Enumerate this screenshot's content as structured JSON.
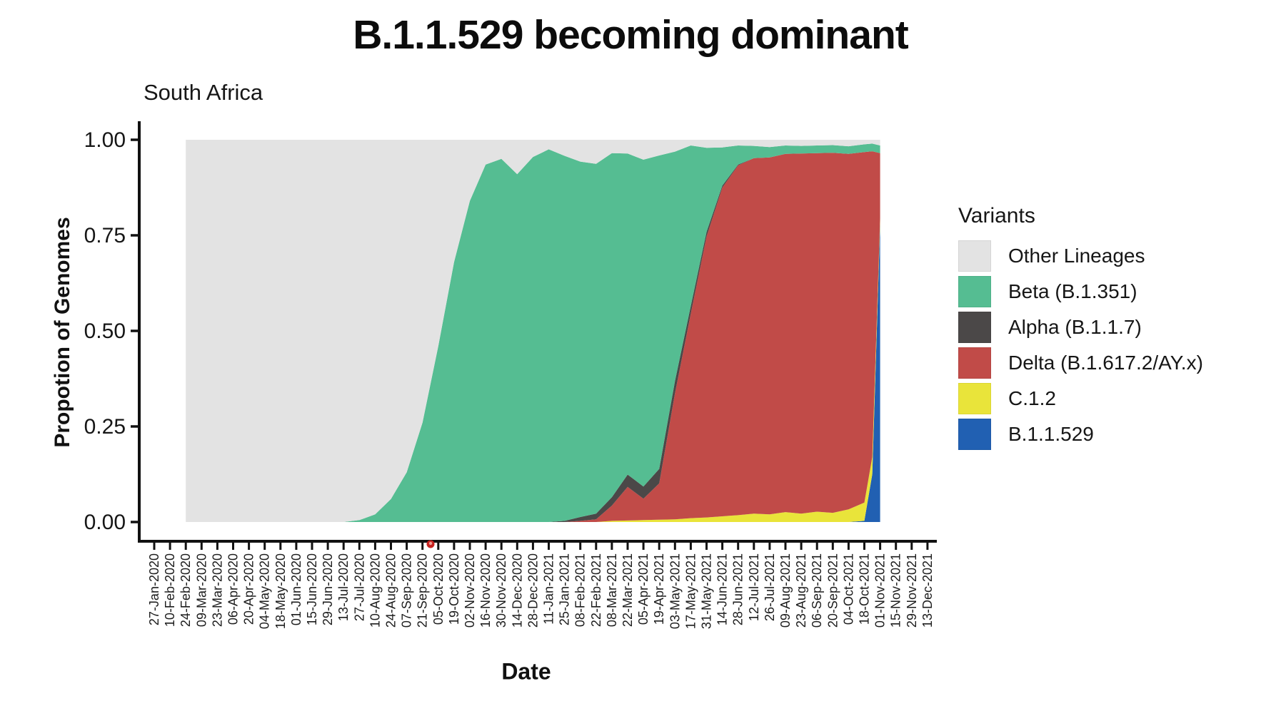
{
  "title": "B.1.1.529 becoming dominant",
  "legend": {
    "title": "Variants",
    "entries": [
      {
        "key": "other",
        "label": "Other Lineages",
        "color": "#e3e3e3"
      },
      {
        "key": "beta",
        "label": "Beta (B.1.351)",
        "color": "#55bd92"
      },
      {
        "key": "alpha",
        "label": "Alpha (B.1.1.7)",
        "color": "#4b4848"
      },
      {
        "key": "delta",
        "label": "Delta (B.1.617.2/AY.x)",
        "color": "#c14b48"
      },
      {
        "key": "c12",
        "label": "C.1.2",
        "color": "#e9e43a"
      },
      {
        "key": "b11529",
        "label": "B.1.1.529",
        "color": "#2160b2"
      }
    ]
  },
  "pointer_dot": {
    "present": true,
    "color": "#c5221f",
    "inner_color": "#ef9d96"
  },
  "chart_data": {
    "type": "area",
    "stacked": true,
    "title": "South Africa",
    "xlabel": "Date",
    "ylabel": "Propotion of Genomes",
    "ylim": [
      0,
      1
    ],
    "grid": false,
    "legend_position": "right",
    "y_ticks": [
      {
        "label": "1.00",
        "value": 1.0
      },
      {
        "label": "0.75",
        "value": 0.75
      },
      {
        "label": "0.50",
        "value": 0.5
      },
      {
        "label": "0.25",
        "value": 0.25
      },
      {
        "label": "0.00",
        "value": 0.0
      }
    ],
    "x_tick_labels": [
      "27-Jan-2020",
      "10-Feb-2020",
      "24-Feb-2020",
      "09-Mar-2020",
      "23-Mar-2020",
      "06-Apr-2020",
      "20-Apr-2020",
      "04-May-2020",
      "18-May-2020",
      "01-Jun-2020",
      "15-Jun-2020",
      "29-Jun-2020",
      "13-Jul-2020",
      "27-Jul-2020",
      "10-Aug-2020",
      "24-Aug-2020",
      "07-Sep-2020",
      "21-Sep-2020",
      "05-Oct-2020",
      "19-Oct-2020",
      "02-Nov-2020",
      "16-Nov-2020",
      "30-Nov-2020",
      "14-Dec-2020",
      "28-Dec-2020",
      "11-Jan-2021",
      "25-Jan-2021",
      "08-Feb-2021",
      "22-Feb-2021",
      "08-Mar-2021",
      "22-Mar-2021",
      "05-Apr-2021",
      "19-Apr-2021",
      "03-May-2021",
      "17-May-2021",
      "31-May-2021",
      "14-Jun-2021",
      "28-Jun-2021",
      "12-Jul-2021",
      "26-Jul-2021",
      "09-Aug-2021",
      "23-Aug-2021",
      "06-Sep-2021",
      "20-Sep-2021",
      "04-Oct-2021",
      "18-Oct-2021",
      "01-Nov-2021",
      "15-Nov-2021",
      "29-Nov-2021",
      "13-Dec-2021"
    ],
    "stack_order_bottom_to_top": [
      "b11529",
      "c12",
      "delta",
      "alpha",
      "beta",
      "other"
    ],
    "series_labels": {
      "other": "Other Lineages",
      "beta": "Beta (B.1.351)",
      "alpha": "Alpha (B.1.1.7)",
      "delta": "Delta (B.1.617.2/AY.x)",
      "c12": "C.1.2",
      "b11529": "B.1.1.529"
    },
    "colors": {
      "other": "#e3e3e3",
      "beta": "#55bd92",
      "alpha": "#4b4848",
      "delta": "#c14b48",
      "c12": "#e9e43a",
      "b11529": "#2160b2"
    },
    "samples": [
      {
        "t": 2,
        "date": "24-Feb-2020",
        "other": 1.0,
        "beta": 0.0,
        "alpha": 0.0,
        "delta": 0.0,
        "c12": 0.0,
        "b11529": 0.0
      },
      {
        "t": 6,
        "date": "20-Apr-2020",
        "other": 1.0,
        "beta": 0.0,
        "alpha": 0.0,
        "delta": 0.0,
        "c12": 0.0,
        "b11529": 0.0
      },
      {
        "t": 10,
        "date": "15-Jun-2020",
        "other": 1.0,
        "beta": 0.0,
        "alpha": 0.0,
        "delta": 0.0,
        "c12": 0.0,
        "b11529": 0.0
      },
      {
        "t": 12,
        "date": "13-Jul-2020",
        "other": 1.0,
        "beta": 0.0,
        "alpha": 0.0,
        "delta": 0.0,
        "c12": 0.0,
        "b11529": 0.0
      },
      {
        "t": 13,
        "date": "27-Jul-2020",
        "other": 0.995,
        "beta": 0.005,
        "alpha": 0.0,
        "delta": 0.0,
        "c12": 0.0,
        "b11529": 0.0
      },
      {
        "t": 14,
        "date": "10-Aug-2020",
        "other": 0.98,
        "beta": 0.02,
        "alpha": 0.0,
        "delta": 0.0,
        "c12": 0.0,
        "b11529": 0.0
      },
      {
        "t": 15,
        "date": "24-Aug-2020",
        "other": 0.94,
        "beta": 0.06,
        "alpha": 0.0,
        "delta": 0.0,
        "c12": 0.0,
        "b11529": 0.0
      },
      {
        "t": 16,
        "date": "07-Sep-2020",
        "other": 0.87,
        "beta": 0.13,
        "alpha": 0.0,
        "delta": 0.0,
        "c12": 0.0,
        "b11529": 0.0
      },
      {
        "t": 17,
        "date": "21-Sep-2020",
        "other": 0.74,
        "beta": 0.26,
        "alpha": 0.0,
        "delta": 0.0,
        "c12": 0.0,
        "b11529": 0.0
      },
      {
        "t": 18,
        "date": "05-Oct-2020",
        "other": 0.54,
        "beta": 0.46,
        "alpha": 0.0,
        "delta": 0.0,
        "c12": 0.0,
        "b11529": 0.0
      },
      {
        "t": 19,
        "date": "19-Oct-2020",
        "other": 0.32,
        "beta": 0.68,
        "alpha": 0.0,
        "delta": 0.0,
        "c12": 0.0,
        "b11529": 0.0
      },
      {
        "t": 20,
        "date": "02-Nov-2020",
        "other": 0.16,
        "beta": 0.84,
        "alpha": 0.0,
        "delta": 0.0,
        "c12": 0.0,
        "b11529": 0.0
      },
      {
        "t": 21,
        "date": "16-Nov-2020",
        "other": 0.065,
        "beta": 0.935,
        "alpha": 0.0,
        "delta": 0.0,
        "c12": 0.0,
        "b11529": 0.0
      },
      {
        "t": 22,
        "date": "30-Nov-2020",
        "other": 0.05,
        "beta": 0.95,
        "alpha": 0.0,
        "delta": 0.0,
        "c12": 0.0,
        "b11529": 0.0
      },
      {
        "t": 23,
        "date": "14-Dec-2020",
        "other": 0.09,
        "beta": 0.91,
        "alpha": 0.0,
        "delta": 0.0,
        "c12": 0.0,
        "b11529": 0.0
      },
      {
        "t": 24,
        "date": "28-Dec-2020",
        "other": 0.045,
        "beta": 0.955,
        "alpha": 0.0,
        "delta": 0.0,
        "c12": 0.0,
        "b11529": 0.0
      },
      {
        "t": 25,
        "date": "11-Jan-2021",
        "other": 0.025,
        "beta": 0.975,
        "alpha": 0.0,
        "delta": 0.0,
        "c12": 0.0,
        "b11529": 0.0
      },
      {
        "t": 26,
        "date": "25-Jan-2021",
        "other": 0.042,
        "beta": 0.955,
        "alpha": 0.003,
        "delta": 0.0,
        "c12": 0.0,
        "b11529": 0.0
      },
      {
        "t": 27,
        "date": "08-Feb-2021",
        "other": 0.057,
        "beta": 0.93,
        "alpha": 0.01,
        "delta": 0.003,
        "c12": 0.0,
        "b11529": 0.0
      },
      {
        "t": 28,
        "date": "22-Feb-2021",
        "other": 0.063,
        "beta": 0.915,
        "alpha": 0.015,
        "delta": 0.007,
        "c12": 0.0,
        "b11529": 0.0
      },
      {
        "t": 29,
        "date": "08-Mar-2021",
        "other": 0.035,
        "beta": 0.9,
        "alpha": 0.022,
        "delta": 0.04,
        "c12": 0.003,
        "b11529": 0.0
      },
      {
        "t": 30,
        "date": "22-Mar-2021",
        "other": 0.036,
        "beta": 0.84,
        "alpha": 0.032,
        "delta": 0.088,
        "c12": 0.004,
        "b11529": 0.0
      },
      {
        "t": 31,
        "date": "05-Apr-2021",
        "other": 0.052,
        "beta": 0.855,
        "alpha": 0.032,
        "delta": 0.056,
        "c12": 0.005,
        "b11529": 0.0
      },
      {
        "t": 32,
        "date": "19-Apr-2021",
        "other": 0.041,
        "beta": 0.82,
        "alpha": 0.038,
        "delta": 0.095,
        "c12": 0.006,
        "b11529": 0.0
      },
      {
        "t": 33,
        "date": "03-May-2021",
        "other": 0.031,
        "beta": 0.6,
        "alpha": 0.032,
        "delta": 0.33,
        "c12": 0.007,
        "b11529": 0.0
      },
      {
        "t": 34,
        "date": "17-May-2021",
        "other": 0.015,
        "beta": 0.42,
        "alpha": 0.02,
        "delta": 0.535,
        "c12": 0.01,
        "b11529": 0.0
      },
      {
        "t": 35,
        "date": "31-May-2021",
        "other": 0.021,
        "beta": 0.22,
        "alpha": 0.012,
        "delta": 0.735,
        "c12": 0.012,
        "b11529": 0.0
      },
      {
        "t": 36,
        "date": "14-Jun-2021",
        "other": 0.02,
        "beta": 0.1,
        "alpha": 0.005,
        "delta": 0.86,
        "c12": 0.015,
        "b11529": 0.0
      },
      {
        "t": 37,
        "date": "28-Jun-2021",
        "other": 0.015,
        "beta": 0.05,
        "alpha": 0.002,
        "delta": 0.915,
        "c12": 0.018,
        "b11529": 0.0
      },
      {
        "t": 38,
        "date": "12-Jul-2021",
        "other": 0.016,
        "beta": 0.032,
        "alpha": 0.0,
        "delta": 0.93,
        "c12": 0.022,
        "b11529": 0.0
      },
      {
        "t": 39,
        "date": "26-Jul-2021",
        "other": 0.019,
        "beta": 0.027,
        "alpha": 0.0,
        "delta": 0.934,
        "c12": 0.02,
        "b11529": 0.0
      },
      {
        "t": 40,
        "date": "09-Aug-2021",
        "other": 0.015,
        "beta": 0.022,
        "alpha": 0.0,
        "delta": 0.937,
        "c12": 0.026,
        "b11529": 0.0
      },
      {
        "t": 41,
        "date": "23-Aug-2021",
        "other": 0.016,
        "beta": 0.02,
        "alpha": 0.0,
        "delta": 0.942,
        "c12": 0.022,
        "b11529": 0.0
      },
      {
        "t": 42,
        "date": "06-Sep-2021",
        "other": 0.015,
        "beta": 0.02,
        "alpha": 0.0,
        "delta": 0.938,
        "c12": 0.027,
        "b11529": 0.0
      },
      {
        "t": 43,
        "date": "20-Sep-2021",
        "other": 0.014,
        "beta": 0.02,
        "alpha": 0.0,
        "delta": 0.942,
        "c12": 0.024,
        "b11529": 0.0
      },
      {
        "t": 44,
        "date": "04-Oct-2021",
        "other": 0.017,
        "beta": 0.02,
        "alpha": 0.0,
        "delta": 0.93,
        "c12": 0.033,
        "b11529": 0.0
      },
      {
        "t": 45,
        "date": "18-Oct-2021",
        "other": 0.012,
        "beta": 0.02,
        "alpha": 0.0,
        "delta": 0.917,
        "c12": 0.048,
        "b11529": 0.003
      },
      {
        "t": 45.5,
        "date": "25-Oct-2021",
        "other": 0.01,
        "beta": 0.02,
        "alpha": 0.0,
        "delta": 0.8,
        "c12": 0.045,
        "b11529": 0.125
      },
      {
        "t": 46,
        "date": "01-Nov-2021",
        "other": 0.015,
        "beta": 0.02,
        "alpha": 0.0,
        "delta": 0.17,
        "c12": 0.015,
        "b11529": 0.78
      }
    ]
  }
}
